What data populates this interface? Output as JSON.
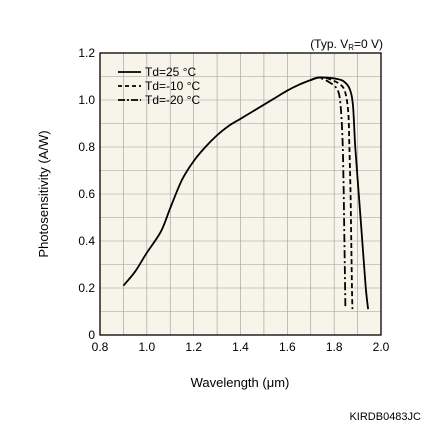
{
  "note": "(Typ. V",
  "note_sub": "R",
  "note_tail": "=0 V)",
  "figure_code": "KIRDB0483JC",
  "chart_data": {
    "type": "line",
    "xlabel": "Wavelength (μm)",
    "ylabel": "Photosensitivity (A/W)",
    "xlim": [
      0.8,
      2.0
    ],
    "ylim": [
      0,
      1.2
    ],
    "x_ticks": [
      "0.8",
      "1.0",
      "1.2",
      "1.4",
      "1.6",
      "1.8",
      "2.0"
    ],
    "y_ticks": [
      "0",
      "0.2",
      "0.4",
      "0.6",
      "0.8",
      "1.0",
      "1.2"
    ],
    "grid": true,
    "legend_position": "top-left",
    "series": [
      {
        "name": "Td=25 °C",
        "style": "solid",
        "points": [
          [
            0.9,
            0.21
          ],
          [
            0.95,
            0.27
          ],
          [
            1.0,
            0.35
          ],
          [
            1.06,
            0.44
          ],
          [
            1.1,
            0.54
          ],
          [
            1.15,
            0.66
          ],
          [
            1.2,
            0.74
          ],
          [
            1.25,
            0.8
          ],
          [
            1.3,
            0.85
          ],
          [
            1.35,
            0.89
          ],
          [
            1.4,
            0.92
          ],
          [
            1.45,
            0.95
          ],
          [
            1.5,
            0.98
          ],
          [
            1.55,
            1.01
          ],
          [
            1.6,
            1.04
          ],
          [
            1.65,
            1.065
          ],
          [
            1.7,
            1.085
          ],
          [
            1.73,
            1.095
          ],
          [
            1.77,
            1.095
          ],
          [
            1.81,
            1.09
          ],
          [
            1.84,
            1.08
          ],
          [
            1.865,
            1.05
          ],
          [
            1.88,
            0.98
          ],
          [
            1.89,
            0.8
          ],
          [
            1.905,
            0.6
          ],
          [
            1.92,
            0.4
          ],
          [
            1.935,
            0.2
          ],
          [
            1.945,
            0.11
          ]
        ]
      },
      {
        "name": "Td=-10 °C",
        "style": "dashed",
        "points": [
          [
            1.7,
            1.085
          ],
          [
            1.73,
            1.095
          ],
          [
            1.76,
            1.095
          ],
          [
            1.79,
            1.085
          ],
          [
            1.82,
            1.07
          ],
          [
            1.845,
            1.04
          ],
          [
            1.86,
            0.95
          ],
          [
            1.865,
            0.8
          ],
          [
            1.87,
            0.6
          ],
          [
            1.873,
            0.4
          ],
          [
            1.876,
            0.2
          ],
          [
            1.878,
            0.11
          ]
        ]
      },
      {
        "name": "Td=-20 °C",
        "style": "dashdot",
        "points": [
          [
            1.7,
            1.085
          ],
          [
            1.73,
            1.095
          ],
          [
            1.75,
            1.09
          ],
          [
            1.78,
            1.075
          ],
          [
            1.81,
            1.05
          ],
          [
            1.825,
            1.0
          ],
          [
            1.835,
            0.85
          ],
          [
            1.84,
            0.65
          ],
          [
            1.843,
            0.45
          ],
          [
            1.846,
            0.25
          ],
          [
            1.848,
            0.11
          ]
        ]
      }
    ]
  }
}
